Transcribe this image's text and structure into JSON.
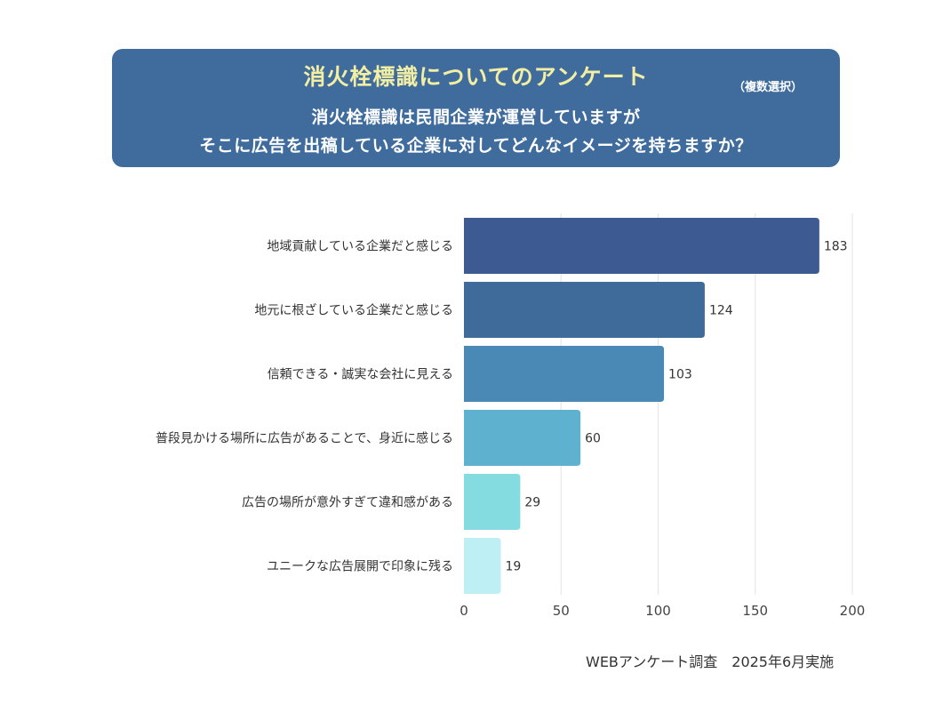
{
  "header": {
    "title": "消火栓標識についてのアンケート",
    "note": "（複数選択）",
    "question_line1": "消火栓標識は民間企業が運営していますが",
    "question_line2": "そこに広告を出稿している企業に対してどんなイメージを持ちますか？"
  },
  "footer": {
    "source": "WEBアンケート調査　2025年6月実施"
  },
  "colors": {
    "header_bg": "#3f6c9c",
    "title_text": "#f2efa4",
    "bars": [
      "#3d5b92",
      "#3f6b9b",
      "#4a88b5",
      "#5eb2cf",
      "#84dbe0",
      "#bdeff5"
    ]
  },
  "chart_data": {
    "type": "bar",
    "orientation": "horizontal",
    "title": "消火栓標識についてのアンケート",
    "categories": [
      "地域貢献している企業だと感じる",
      "地元に根ざしている企業だと感じる",
      "信頼できる・誠実な会社に見える",
      "普段見かける場所に広告があることで、身近に感じる",
      "広告の場所が意外すぎて違和感がある",
      "ユニークな広告展開で印象に残る"
    ],
    "values": [
      183,
      124,
      103,
      60,
      29,
      19
    ],
    "value_labels": [
      "183",
      "124",
      "103",
      "60",
      "29",
      "19"
    ],
    "xlim": [
      0,
      200
    ],
    "xticks": [
      0,
      50,
      100,
      150,
      200
    ],
    "xtick_labels": [
      "0",
      "50",
      "100",
      "150",
      "200"
    ],
    "xlabel": "",
    "ylabel": "",
    "grid": true
  }
}
